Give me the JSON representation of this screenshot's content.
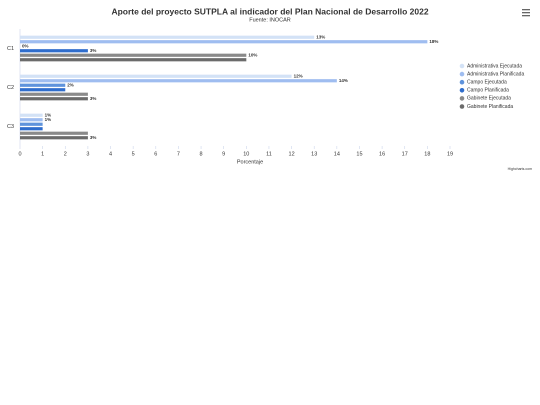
{
  "chart_data": {
    "type": "bar",
    "orientation": "horizontal",
    "title": "Aporte del proyecto SUTPLA al indicador del Plan Nacional de Desarrollo 2022",
    "subtitle": "Fuente: INOCAR",
    "x_axis_label": "Porcentaje",
    "credits": "Highcharts.com",
    "categories": [
      "C1",
      "C2",
      "C3"
    ],
    "series": [
      {
        "name": "Administrativa Ejecutada",
        "color": "#d3e2f6",
        "values": [
          13,
          12,
          1
        ],
        "value_labels": [
          "13%",
          "12%",
          "1%"
        ]
      },
      {
        "name": "Administrativa Planificada",
        "color": "#9fbdf0",
        "values": [
          18,
          14,
          1
        ],
        "value_labels": [
          "18%",
          "14%",
          "1%"
        ]
      },
      {
        "name": "Campo Ejecutada",
        "color": "#5f93dc",
        "values": [
          0,
          2,
          1
        ],
        "value_labels": [
          "0%",
          "2%",
          null
        ]
      },
      {
        "name": "Campo Planificada",
        "color": "#2f6dcc",
        "values": [
          3,
          2,
          1
        ],
        "value_labels": [
          "3%",
          null,
          null
        ]
      },
      {
        "name": "Gabinete Ejecutada",
        "color": "#8a8a8a",
        "values": [
          10,
          3,
          3
        ],
        "value_labels": [
          "10%",
          null,
          null
        ]
      },
      {
        "name": "Gabinete Planificada",
        "color": "#6b6b6b",
        "values": [
          10,
          3,
          3
        ],
        "value_labels": [
          null,
          "3%",
          "3%"
        ]
      }
    ],
    "xlim": [
      0,
      19
    ],
    "xticks": [
      0,
      1,
      2,
      3,
      4,
      5,
      6,
      7,
      8,
      9,
      10,
      11,
      12,
      13,
      14,
      15,
      16,
      17,
      18,
      19
    ],
    "grid": false,
    "legend": "right"
  }
}
